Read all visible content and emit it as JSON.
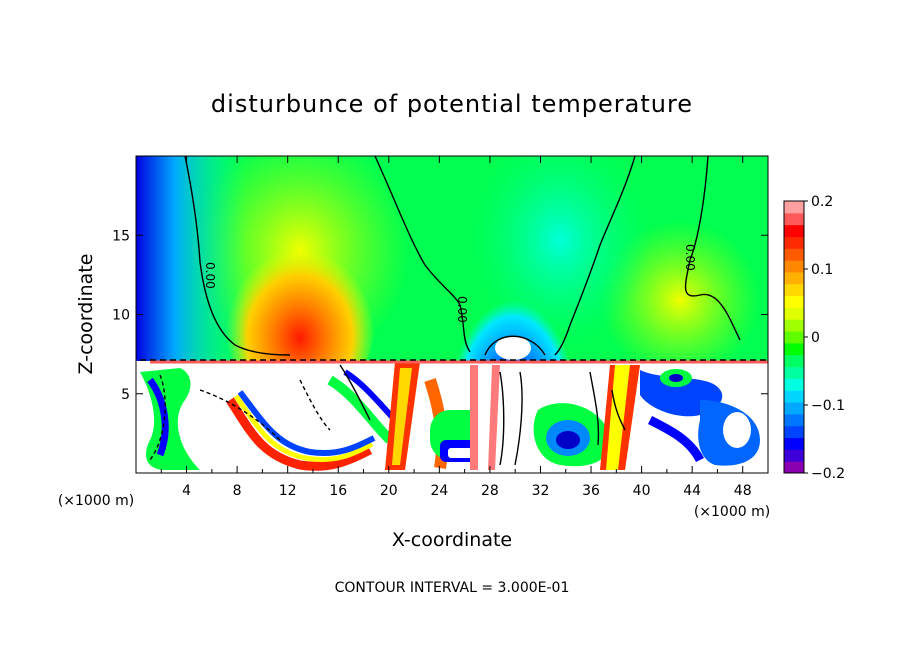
{
  "chart_data": {
    "type": "heatmap",
    "title": "disturbunce of potential temperature",
    "xlabel": "X-coordinate",
    "ylabel": "Z-coordinate",
    "x_unit_label": "(×1000 m)",
    "y_unit_label": "(×1000 m)",
    "footer": "CONTOUR INTERVAL = 3.000E-01",
    "xlim": [
      0,
      50
    ],
    "ylim": [
      0,
      20
    ],
    "x_ticks": [
      4,
      8,
      12,
      16,
      20,
      24,
      28,
      32,
      36,
      40,
      44,
      48
    ],
    "y_ticks": [
      5,
      10,
      15
    ],
    "colorbar": {
      "min": -0.2,
      "max": 0.2,
      "ticks": [
        0.2,
        0.1,
        0,
        -0.1,
        -0.2
      ],
      "tick_labels": [
        "0.2",
        "0.1",
        "0",
        "−0.1",
        "−0.2"
      ],
      "colors": [
        "#8a00b0",
        "#3d00d9",
        "#0000ff",
        "#0044ff",
        "#0077ff",
        "#00a8ff",
        "#00d4ff",
        "#00ffe0",
        "#00ffa0",
        "#00ff60",
        "#00ff00",
        "#60ff00",
        "#a0ff00",
        "#e0ff00",
        "#ffff00",
        "#ffd800",
        "#ffb000",
        "#ff8800",
        "#ff5a00",
        "#ff2a00",
        "#ff0000",
        "#ff5a5a",
        "#ffa0a0"
      ]
    },
    "contour_labels": [
      "0.00",
      "0.00",
      "0.00"
    ]
  }
}
